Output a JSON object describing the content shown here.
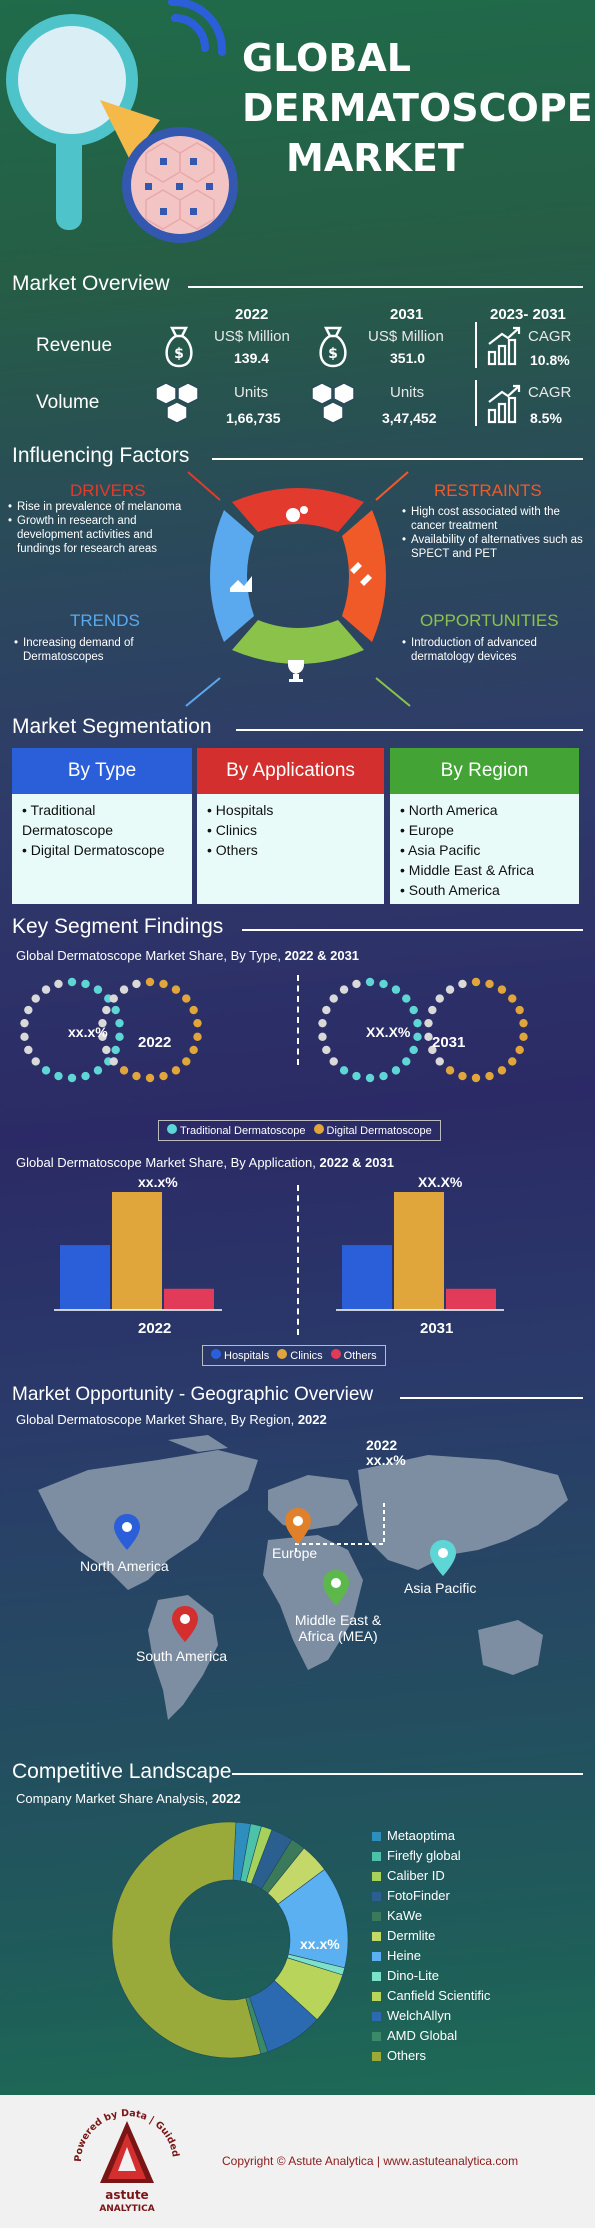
{
  "hero": {
    "title_line1": "GLOBAL",
    "title_line2": "DERMATOSCOPE",
    "title_line3": "MARKET"
  },
  "overview": {
    "title": "Market Overview",
    "year_a": "2022",
    "year_b": "2031",
    "year_c": "2023- 2031",
    "revenue": {
      "label": "Revenue",
      "unit_a": "US$ Million",
      "value_a": "139.4",
      "unit_b": "US$ Million",
      "value_b": "351.0",
      "cagr_label": "CAGR",
      "cagr": "10.8%"
    },
    "volume": {
      "label": "Volume",
      "unit_a": "Units",
      "value_a": "1,66,735",
      "unit_b": "Units",
      "value_b": "3,47,452",
      "cagr_label": "CAGR",
      "cagr": "8.5%"
    }
  },
  "factors": {
    "title": "Influencing Factors",
    "drivers": {
      "title": "DRIVERS",
      "color": "#e23b2e",
      "items": [
        "Rise in prevalence of melanoma",
        "Growth in research and development activities and fundings for research areas"
      ]
    },
    "restraints": {
      "title": "RESTRAINTS",
      "color": "#f05a28",
      "items": [
        "High cost associated with the cancer treatment",
        "Availability of alternatives such as SPECT and PET"
      ]
    },
    "trends": {
      "title": "TRENDS",
      "color": "#5aa9ee",
      "items": [
        "Increasing demand of Dermatoscopes"
      ]
    },
    "opportunities": {
      "title": "OPPORTUNITIES",
      "color": "#8bc34a",
      "items": [
        "Introduction of advanced dermatology devices"
      ]
    }
  },
  "segmentation": {
    "title": "Market Segmentation",
    "by_type": {
      "head": "By Type",
      "color": "#2b5fd9",
      "items": [
        "Traditional Dermatoscope",
        "Digital Dermatoscope"
      ]
    },
    "by_app": {
      "head": "By Applications",
      "color": "#d32f2f",
      "items": [
        "Hospitals",
        "Clinics",
        "Others"
      ]
    },
    "by_region": {
      "head": "By Region",
      "color": "#43a335",
      "items": [
        "North America",
        "Europe",
        "Asia Pacific",
        "Middle East & Africa",
        "South America"
      ]
    }
  },
  "findings": {
    "title": "Key Segment Findings",
    "type_chart_title": "Global Dermatoscope Market Share, By Type,",
    "type_chart_years": "2022 & 2031",
    "donut_2022_label": "xx.x%",
    "donut_2031_label": "XX.X%",
    "year_2022": "2022",
    "year_2031": "2031",
    "type_legend": [
      "Traditional Dermatoscope",
      "Digital Dermatoscope"
    ],
    "type_colors": [
      "#5fd6d6",
      "#e0a63b"
    ],
    "app_chart_title": "Global Dermatoscope Market Share, By Application,",
    "app_chart_years": "2022 & 2031",
    "bar_2022_label": "xx.x%",
    "bar_2031_label": "XX.X%",
    "app_legend": [
      "Hospitals",
      "Clinics",
      "Others"
    ],
    "app_colors": [
      "#2b5fd9",
      "#e0a63b",
      "#e23b5a"
    ]
  },
  "geo": {
    "title": "Market Opportunity - Geographic Overview",
    "subtitle": "Global Dermatoscope Market Share, By Region,",
    "subtitle_year": "2022",
    "callout_year": "2022",
    "callout_value": "xx.x%",
    "regions": [
      {
        "name": "North America",
        "color": "#2b5fd9"
      },
      {
        "name": "Europe",
        "color": "#e0802b"
      },
      {
        "name": "Asia Pacific",
        "color": "#5fd6d6"
      },
      {
        "name": "Middle East &",
        "name2": "Africa (MEA)",
        "color": "#5cb84a"
      },
      {
        "name": "South America",
        "color": "#d32f2f"
      }
    ]
  },
  "competitive": {
    "title": "Competitive Landscape",
    "subtitle": "Company Market Share Analysis,",
    "subtitle_year": "2022",
    "donut_label": "xx.x%",
    "companies": [
      {
        "name": "Metaoptima",
        "color": "#2e8fbf"
      },
      {
        "name": "Firefly global",
        "color": "#4cc2a8"
      },
      {
        "name": "Caliber ID",
        "color": "#a6d15a"
      },
      {
        "name": "FotoFinder",
        "color": "#2b5f8f"
      },
      {
        "name": "KaWe",
        "color": "#3a7a5a"
      },
      {
        "name": "Dermlite",
        "color": "#c4d86a"
      },
      {
        "name": "Heine",
        "color": "#5ab0f0"
      },
      {
        "name": "Dino-Lite",
        "color": "#7de0c8"
      },
      {
        "name": "Canfield Scientific",
        "color": "#b8d45a"
      },
      {
        "name": "WelchAllyn",
        "color": "#2b6ab0"
      },
      {
        "name": "AMD Global",
        "color": "#3a8a6a"
      },
      {
        "name": "Others",
        "color": "#9aaa3a"
      }
    ]
  },
  "footer": {
    "logo_ring_text": "Powered by Data | Guided by Intelligence",
    "logo_name": "astute",
    "logo_name2": "ANALYTICA",
    "copyright": "Copyright © Astute Analytica | www.astuteanalytica.com"
  }
}
